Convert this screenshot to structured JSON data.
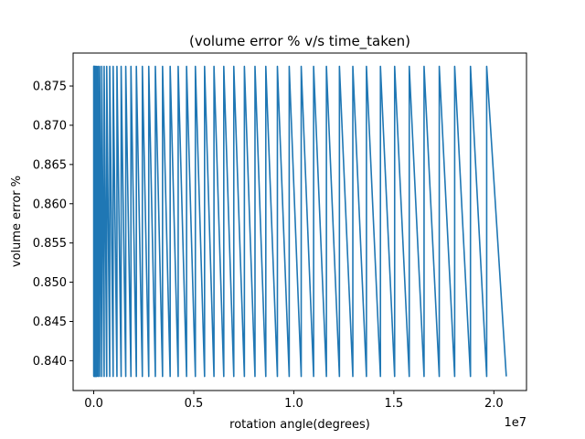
{
  "chart_data": {
    "type": "line",
    "title": "(volume error % v/s time_taken)",
    "xlabel": "rotation angle(degrees)",
    "ylabel": "volume error %",
    "x_multiplier_label": "1e7",
    "x_scale": 10000000,
    "xlim": [
      -1030000,
      21630000
    ],
    "ylim": [
      0.8362,
      0.8792
    ],
    "xticks": [
      0.0,
      0.5,
      1.0,
      1.5,
      2.0
    ],
    "xtick_labels": [
      "0.0",
      "0.5",
      "1.0",
      "1.5",
      "2.0"
    ],
    "yticks": [
      0.84,
      0.845,
      0.85,
      0.855,
      0.86,
      0.865,
      0.87,
      0.875
    ],
    "ytick_labels": [
      "0.840",
      "0.845",
      "0.850",
      "0.855",
      "0.860",
      "0.865",
      "0.870",
      "0.875"
    ],
    "grid": false,
    "legend": "none",
    "series_color": "#1f77b4",
    "y_high": 0.8775,
    "y_low": 0.838,
    "x_rise": [
      0,
      10000,
      30000,
      60000,
      100000,
      150000,
      220000,
      300000,
      400000,
      520000,
      650000,
      800000,
      970000,
      1160000,
      1370000,
      1600000,
      1860000,
      2130000,
      2430000,
      2750000,
      3080000,
      3440000,
      3820000,
      4220000,
      4640000,
      5080000,
      5540000,
      6010000,
      6500000,
      7000000,
      7530000,
      8060000,
      8600000,
      9180000,
      9770000,
      10370000,
      10990000,
      11630000,
      12280000,
      12950000,
      13630000,
      14330000,
      15040000,
      15770000,
      16510000,
      17270000,
      18040000,
      18830000,
      19640000
    ],
    "x_end": 20620000
  }
}
